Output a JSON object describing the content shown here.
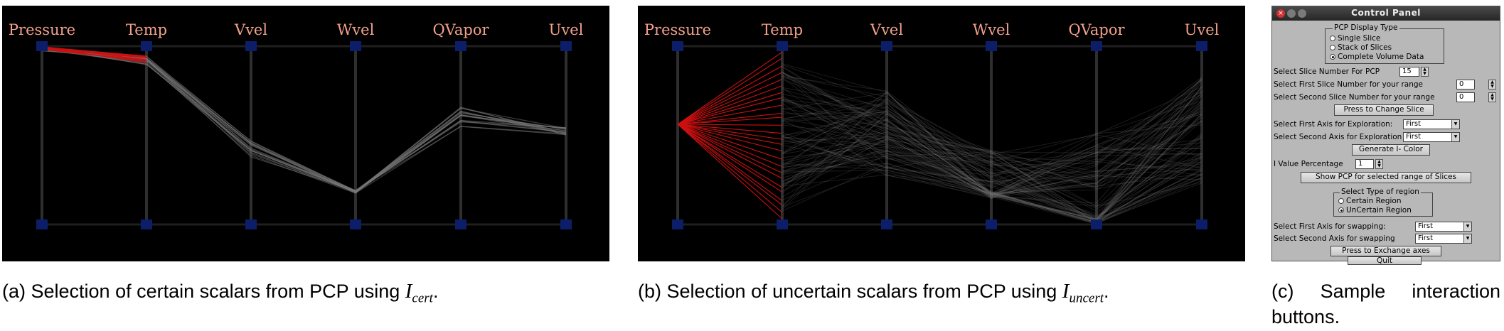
{
  "figures": [
    {
      "id": "a",
      "caption": {
        "prefix": "(a) Selection of certain scalars from PCP using ",
        "var_main": "I",
        "var_sub": "cert",
        "suffix": "."
      },
      "axes": [
        "Pressure",
        "Temp",
        "Vvel",
        "Wvel",
        "QVapor",
        "Uvel"
      ],
      "mode": "certain",
      "colors": {
        "background": "#000000",
        "axis": "#2e2e2e",
        "handle": "#0c1e6a",
        "label": "#f2a08a",
        "lines": "#7a7a7a",
        "selected": "#cc1010"
      }
    },
    {
      "id": "b",
      "caption": {
        "prefix": "(b) Selection of uncertain scalars from PCP using ",
        "var_main": "I",
        "var_sub": "uncert",
        "suffix": "."
      },
      "axes": [
        "Pressure",
        "Temp",
        "Vvel",
        "Wvel",
        "QVapor",
        "Uvel"
      ],
      "mode": "uncertain",
      "colors": {
        "background": "#000000",
        "axis": "#2e2e2e",
        "handle": "#0c1e6a",
        "label": "#f2a08a",
        "lines": "#7a7a7a",
        "selected": "#cc1010"
      }
    }
  ],
  "control_panel": {
    "title": "Control Panel",
    "window_icons": [
      "close-icon",
      "minimize-icon",
      "maximize-icon"
    ],
    "display_type": {
      "legend": "PCP Display Type",
      "options": [
        "Single Slice",
        "Stack of Slices",
        "Complete Volume Data"
      ],
      "selected": 2
    },
    "slice_number_label": "Select Slice Number For PCP",
    "slice_number_value": "15",
    "first_slice_label": "Select First Slice Number for your range",
    "first_slice_value": "0",
    "second_slice_label": "Select Second Slice Number for your range",
    "second_slice_value": "0",
    "change_slice_button": "Press to Change Slice",
    "first_axis_explore_label": "Select First Axis for Exploration:",
    "first_axis_explore_value": "First",
    "second_axis_explore_label": "Select Second Axis for Exploration",
    "second_axis_explore_value": "First",
    "generate_button": "Generate I- Color",
    "i_value_label": "I Value Percentage",
    "i_value": "1",
    "show_pcp_button": "Show PCP for selected range of Slices",
    "region_type": {
      "legend": "Select Type of region",
      "options": [
        "Certain Region",
        "UnCertain Region"
      ],
      "selected": 1
    },
    "first_axis_swap_label": "Select First Axis for swapping:",
    "first_axis_swap_value": "First",
    "second_axis_swap_label": "Select Second Axis for swapping",
    "second_axis_swap_value": "First",
    "exchange_button": "Press to Exchange axes",
    "quit_button": "Quit"
  },
  "caption_c": {
    "line1_left": "(c)",
    "line1_mid": "Sample",
    "line1_right": "interaction",
    "line2": "buttons."
  }
}
